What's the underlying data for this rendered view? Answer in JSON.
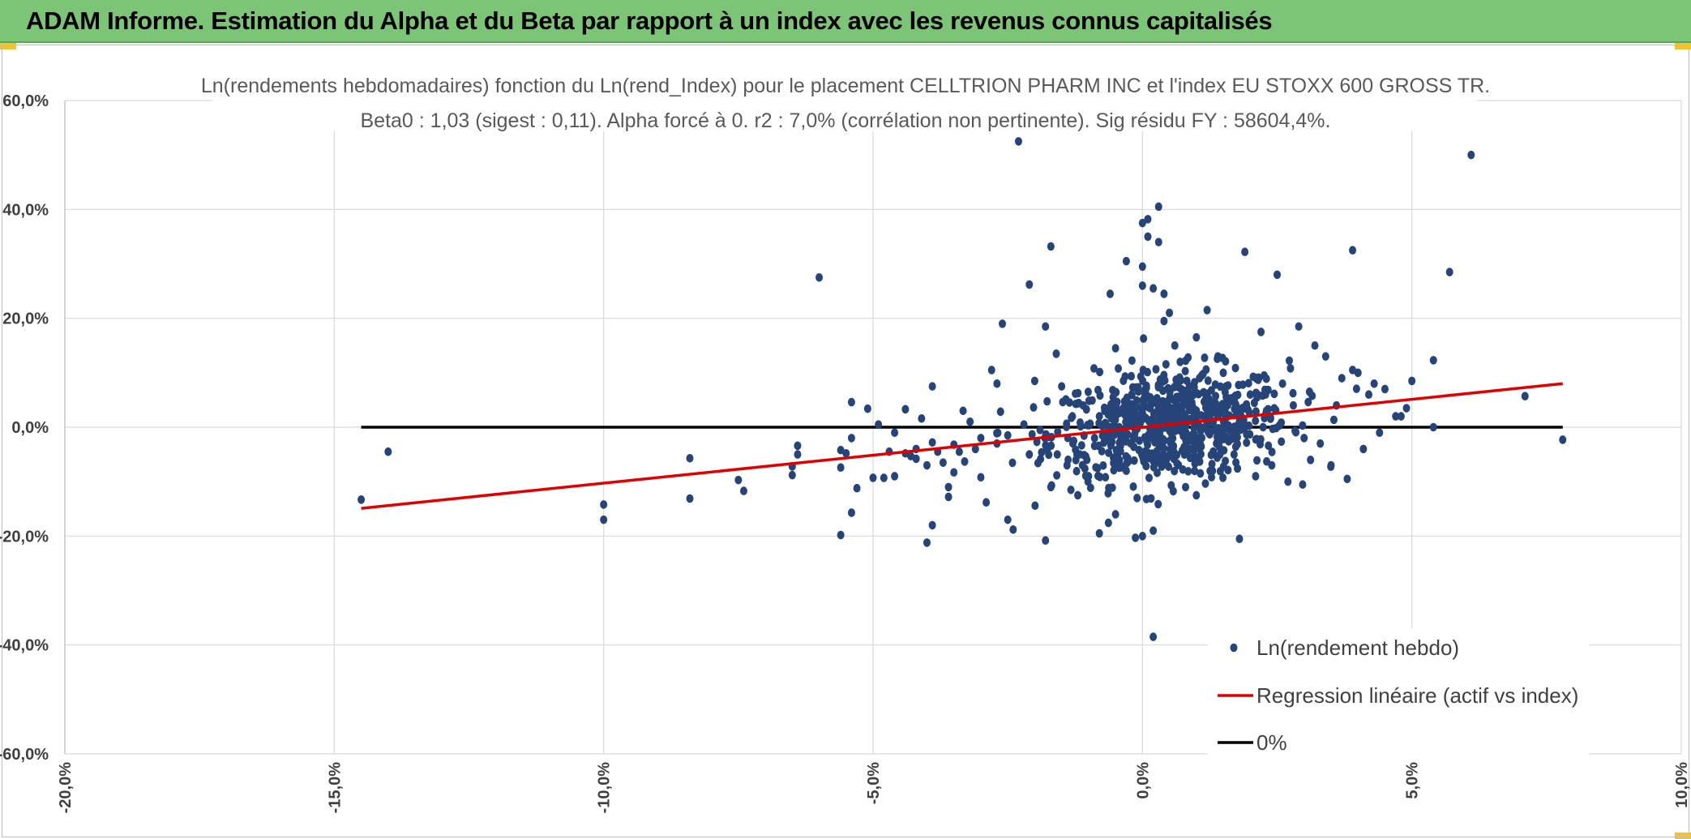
{
  "header": {
    "title": "ADAM Informe. Estimation du Alpha et du Beta par rapport à un index avec les revenus connus capitalisés"
  },
  "colors": {
    "header_bg": "#7cc576",
    "points": "#264478",
    "regression": "#e00000",
    "zero_line": "#000000",
    "grid": "#d9d9d9"
  },
  "chart_data": {
    "type": "scatter",
    "title": "Ln(rendements hebdomadaires) fonction du Ln(rend_Index) pour le placement CELLTRION PHARM INC et l'index EU STOXX 600 GROSS TR.",
    "subtitle": "Beta0 : 1,03 (sigest : 0,11). Alpha forcé à 0. r2 : 7,0% (corrélation non pertinente). Sig résidu FY : 58604,4%.",
    "xlabel": "",
    "ylabel": "",
    "xlim": [
      -0.2,
      0.1
    ],
    "ylim": [
      -0.6,
      0.6
    ],
    "x_ticks": [
      -0.2,
      -0.15,
      -0.1,
      -0.05,
      0.0,
      0.05,
      0.1
    ],
    "x_tick_labels": [
      "-20,0%",
      "-15,0%",
      "-10,0%",
      "-5,0%",
      "0,0%",
      "5,0%",
      "10,0%"
    ],
    "y_ticks": [
      0.6,
      0.4,
      0.2,
      0.0,
      -0.2,
      -0.4,
      -0.6
    ],
    "y_tick_labels": [
      "60,0%",
      "40,0%",
      "20,0%",
      "0,0%",
      "-20,0%",
      "-40,0%",
      "-60,0%"
    ],
    "grid": true,
    "legend_position": "bottom-right",
    "series": [
      {
        "name": "Ln(rendement hebdo)",
        "kind": "points",
        "points": [
          [
            -0.145,
            -0.133
          ],
          [
            -0.14,
            -0.045
          ],
          [
            -0.1,
            -0.142
          ],
          [
            -0.1,
            -0.17
          ],
          [
            -0.084,
            -0.057
          ],
          [
            -0.084,
            -0.131
          ],
          [
            -0.075,
            -0.097
          ],
          [
            -0.074,
            -0.117
          ],
          [
            -0.065,
            -0.088
          ],
          [
            -0.065,
            -0.072
          ],
          [
            -0.064,
            -0.05
          ],
          [
            -0.064,
            -0.034
          ],
          [
            -0.06,
            0.275
          ],
          [
            -0.056,
            -0.198
          ],
          [
            -0.056,
            -0.042
          ],
          [
            -0.056,
            -0.074
          ],
          [
            -0.055,
            -0.048
          ],
          [
            -0.054,
            0.046
          ],
          [
            -0.054,
            -0.157
          ],
          [
            -0.054,
            -0.02
          ],
          [
            -0.053,
            -0.112
          ],
          [
            -0.051,
            0.034
          ],
          [
            -0.05,
            -0.093
          ],
          [
            -0.049,
            0.005
          ],
          [
            -0.048,
            -0.093
          ],
          [
            -0.047,
            -0.045
          ],
          [
            -0.046,
            -0.09
          ],
          [
            -0.046,
            -0.01
          ],
          [
            -0.044,
            0.033
          ],
          [
            -0.044,
            -0.048
          ],
          [
            -0.043,
            -0.053
          ],
          [
            -0.042,
            -0.04
          ],
          [
            -0.042,
            -0.058
          ],
          [
            -0.041,
            0.016
          ],
          [
            -0.04,
            -0.212
          ],
          [
            -0.04,
            -0.07
          ],
          [
            -0.039,
            -0.18
          ],
          [
            -0.039,
            -0.028
          ],
          [
            -0.039,
            0.075
          ],
          [
            -0.038,
            -0.045
          ],
          [
            -0.037,
            -0.065
          ],
          [
            -0.036,
            -0.11
          ],
          [
            -0.036,
            -0.128
          ],
          [
            -0.035,
            -0.083
          ],
          [
            -0.035,
            -0.032
          ],
          [
            -0.034,
            -0.045
          ],
          [
            -0.033,
            -0.063
          ],
          [
            -0.032,
            0.01
          ],
          [
            -0.031,
            -0.04
          ],
          [
            -0.03,
            -0.02
          ],
          [
            -0.03,
            -0.092
          ],
          [
            -0.029,
            -0.138
          ],
          [
            -0.028,
            0.105
          ],
          [
            -0.027,
            0.08
          ],
          [
            -0.027,
            -0.03
          ],
          [
            -0.026,
            0.19
          ],
          [
            -0.025,
            -0.015
          ],
          [
            -0.025,
            -0.17
          ],
          [
            -0.024,
            -0.188
          ],
          [
            -0.023,
            0.525
          ],
          [
            -0.022,
            0.005
          ],
          [
            -0.021,
            0.262
          ],
          [
            -0.021,
            -0.05
          ],
          [
            -0.02,
            0.085
          ],
          [
            -0.019,
            -0.005
          ],
          [
            -0.018,
            0.185
          ],
          [
            -0.018,
            -0.208
          ],
          [
            -0.017,
            0.332
          ],
          [
            -0.017,
            -0.11
          ],
          [
            -0.016,
            0.135
          ],
          [
            -0.015,
            0.075
          ],
          [
            -0.014,
            -0.07
          ],
          [
            -0.013,
            0.02
          ],
          [
            -0.012,
            -0.125
          ],
          [
            -0.011,
            0.04
          ],
          [
            -0.01,
            -0.09
          ],
          [
            -0.009,
            0.108
          ],
          [
            -0.008,
            0.02
          ],
          [
            -0.008,
            -0.195
          ],
          [
            -0.007,
            0.03
          ],
          [
            -0.006,
            0.245
          ],
          [
            -0.005,
            -0.16
          ],
          [
            -0.005,
            0.145
          ],
          [
            -0.004,
            -0.02
          ],
          [
            -0.003,
            0.305
          ],
          [
            -0.003,
            -0.08
          ],
          [
            -0.002,
            0.06
          ],
          [
            -0.001,
            -0.13
          ],
          [
            0.0,
            0.375
          ],
          [
            0.0,
            0.295
          ],
          [
            0.0,
            0.26
          ],
          [
            0.0,
            -0.2
          ],
          [
            0.001,
            0.382
          ],
          [
            0.001,
            0.35
          ],
          [
            0.002,
            0.255
          ],
          [
            0.002,
            -0.19
          ],
          [
            0.002,
            -0.385
          ],
          [
            0.003,
            0.34
          ],
          [
            0.003,
            0.405
          ],
          [
            0.004,
            0.245
          ],
          [
            0.004,
            0.195
          ],
          [
            0.005,
            0.21
          ],
          [
            0.006,
            0.15
          ],
          [
            0.007,
            0.12
          ],
          [
            0.008,
            -0.11
          ],
          [
            0.009,
            0.06
          ],
          [
            0.01,
            0.165
          ],
          [
            0.01,
            -0.125
          ],
          [
            0.011,
            0.095
          ],
          [
            0.012,
            0.215
          ],
          [
            0.013,
            -0.08
          ],
          [
            0.014,
            0.13
          ],
          [
            0.015,
            0.1
          ],
          [
            0.016,
            0.05
          ],
          [
            0.017,
            -0.05
          ],
          [
            0.018,
            -0.205
          ],
          [
            0.019,
            0.322
          ],
          [
            0.02,
            0.06
          ],
          [
            0.021,
            -0.09
          ],
          [
            0.022,
            0.175
          ],
          [
            0.023,
            0.03
          ],
          [
            0.024,
            -0.07
          ],
          [
            0.025,
            0.28
          ],
          [
            0.026,
            0.08
          ],
          [
            0.027,
            -0.1
          ],
          [
            0.028,
            0.04
          ],
          [
            0.029,
            0.185
          ],
          [
            0.03,
            -0.02
          ],
          [
            0.031,
            0.065
          ],
          [
            0.032,
            0.15
          ],
          [
            0.033,
            -0.03
          ],
          [
            0.034,
            0.13
          ],
          [
            0.035,
            -0.07
          ],
          [
            0.036,
            0.04
          ],
          [
            0.037,
            0.09
          ],
          [
            0.038,
            -0.095
          ],
          [
            0.039,
            0.325
          ],
          [
            0.039,
            0.105
          ],
          [
            0.04,
            0.1
          ],
          [
            0.041,
            -0.04
          ],
          [
            0.042,
            0.06
          ],
          [
            0.043,
            0.08
          ],
          [
            0.044,
            -0.01
          ],
          [
            0.045,
            0.07
          ],
          [
            0.047,
            0.02
          ],
          [
            0.048,
            0.02
          ],
          [
            0.049,
            0.035
          ],
          [
            0.05,
            0.085
          ],
          [
            0.054,
            0.123
          ],
          [
            0.054,
            0.0
          ],
          [
            0.057,
            0.285
          ],
          [
            0.061,
            0.5
          ],
          [
            0.071,
            0.057
          ],
          [
            0.078,
            -0.023
          ]
        ],
        "note": "plus a dense cluster of roughly 700 weekly observations centred near (0.5%, 0%) with spread about 1.1% on x and 5% on y"
      },
      {
        "name": "Regression linéaire (actif vs index)",
        "kind": "line",
        "x": [
          -0.145,
          0.078
        ],
        "y": [
          -0.149,
          0.08
        ]
      },
      {
        "name": "0%",
        "kind": "line",
        "x": [
          -0.145,
          0.078
        ],
        "y": [
          0.0,
          0.0
        ]
      }
    ]
  }
}
